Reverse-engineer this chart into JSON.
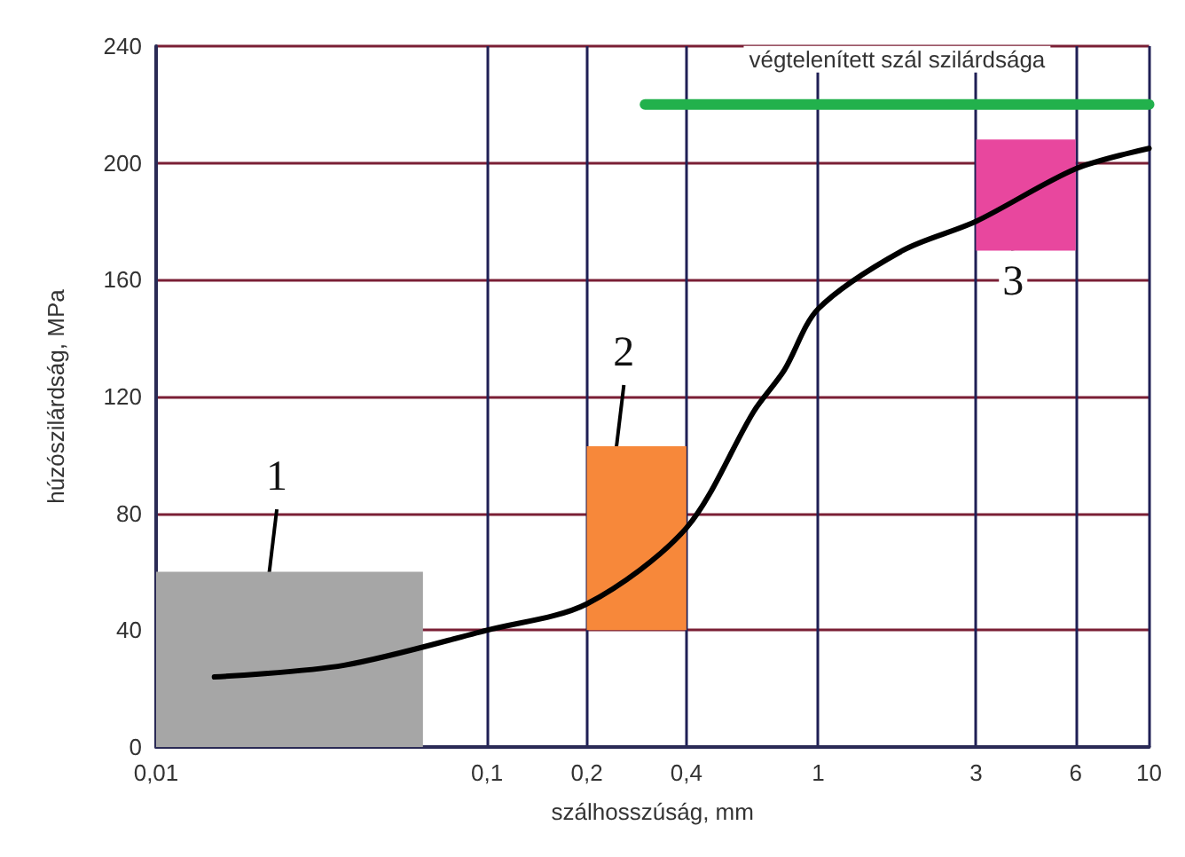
{
  "chart_data": {
    "type": "line",
    "xlabel": "szálhosszúság, mm",
    "ylabel": "húzószilárdság, MPa",
    "log": "x",
    "xlim": [
      0.01,
      10
    ],
    "xticks": [
      {
        "value": 0.01,
        "label": "0,01"
      },
      {
        "value": 0.1,
        "label": "0,1"
      },
      {
        "value": 0.2,
        "label": "0,2"
      },
      {
        "value": 0.4,
        "label": "0,4"
      },
      1,
      3,
      6,
      10
    ],
    "ylim": [
      0,
      240
    ],
    "yticks": [
      0,
      40,
      80,
      120,
      160,
      200,
      240
    ],
    "grid": true,
    "marker": "none",
    "series": [
      {
        "color": "#a6a6a6",
        "x": [
          0.01,
          0.064
        ],
        "values": [
          null,
          null
        ],
        "lower": [
          0,
          0
        ],
        "upper": [
          60,
          60
        ]
      },
      {
        "color": "#f7883a",
        "x": [
          0.2,
          0.4
        ],
        "values": [
          null,
          null
        ],
        "lower": [
          40,
          40
        ],
        "upper": [
          103,
          103
        ]
      },
      {
        "color": "#e8479e",
        "x": [
          3,
          6
        ],
        "values": [
          null,
          null
        ],
        "lower": [
          170,
          170
        ],
        "upper": [
          208,
          208
        ]
      },
      {
        "name": "végtelenített szál szilárdsága",
        "color": "#22b14c",
        "x": [
          0.3,
          10
        ],
        "values": [
          220,
          220
        ]
      },
      {
        "color": "#000000",
        "x": [
          0.015,
          0.037,
          0.1,
          0.2,
          0.4,
          0.64,
          0.79,
          1,
          1.8,
          3,
          6,
          10
        ],
        "values": [
          24,
          28,
          40,
          49,
          75,
          115,
          129,
          150,
          170,
          180,
          198,
          205
        ]
      }
    ],
    "annotations": [
      "1",
      "2",
      "3"
    ]
  }
}
